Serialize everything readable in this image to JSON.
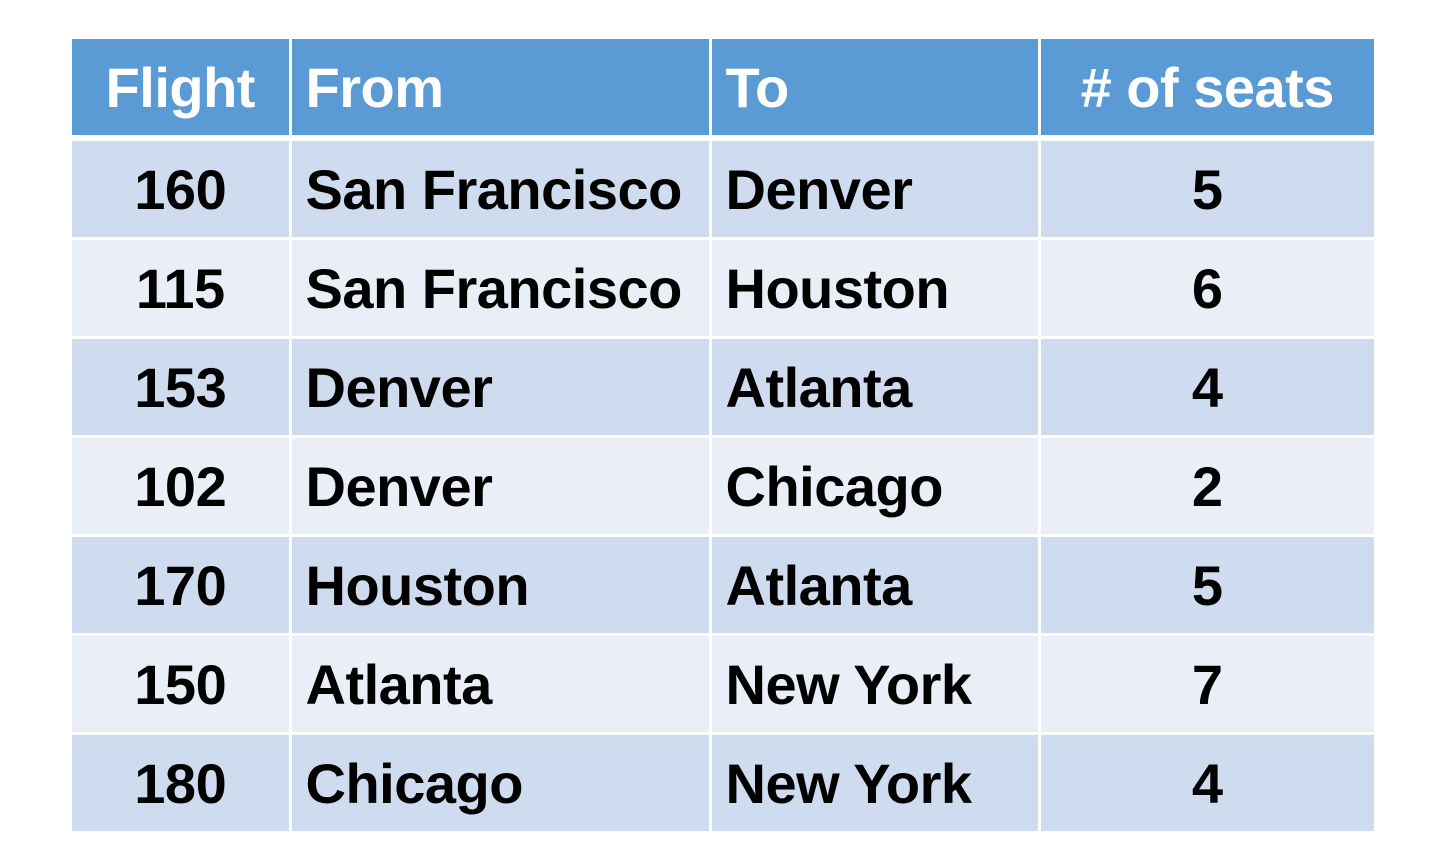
{
  "table": {
    "headers": {
      "flight": "Flight",
      "from": "From",
      "to": "To",
      "seats": "# of seats"
    },
    "rows": [
      {
        "flight": "160",
        "from": "San Francisco",
        "to": "Denver",
        "seats": "5"
      },
      {
        "flight": "115",
        "from": "San Francisco",
        "to": "Houston",
        "seats": "6"
      },
      {
        "flight": "153",
        "from": "Denver",
        "to": "Atlanta",
        "seats": "4"
      },
      {
        "flight": "102",
        "from": "Denver",
        "to": "Chicago",
        "seats": "2"
      },
      {
        "flight": "170",
        "from": "Houston",
        "to": "Atlanta",
        "seats": "5"
      },
      {
        "flight": "150",
        "from": "Atlanta",
        "to": "New York",
        "seats": "7"
      },
      {
        "flight": "180",
        "from": "Chicago",
        "to": "New York",
        "seats": "4"
      }
    ]
  },
  "colors": {
    "header_bg": "#5b9bd5",
    "row_odd_bg": "#cfdbef",
    "row_even_bg": "#e9eef7"
  }
}
